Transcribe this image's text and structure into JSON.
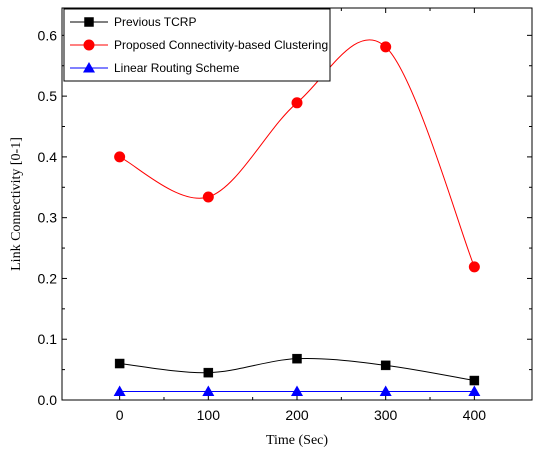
{
  "chart_data": {
    "type": "line",
    "xlabel": "Time (Sec)",
    "ylabel": "Link Connectivity [0-1]",
    "xlim": [
      -65,
      465
    ],
    "ylim": [
      0,
      0.645
    ],
    "x_ticks": [
      0,
      100,
      200,
      300,
      400
    ],
    "x_tick_labels": [
      "0",
      "100",
      "200",
      "300",
      "400"
    ],
    "y_ticks": [
      0.0,
      0.1,
      0.2,
      0.3,
      0.4,
      0.5,
      0.6
    ],
    "y_tick_labels": [
      "0.0",
      "0.1",
      "0.2",
      "0.3",
      "0.4",
      "0.5",
      "0.6"
    ],
    "grid": false,
    "legend_position": "top-left",
    "x": [
      0,
      100,
      200,
      300,
      400
    ],
    "series": [
      {
        "name": "Previous TCRP",
        "values": [
          0.06,
          0.045,
          0.068,
          0.057,
          0.032
        ],
        "color": "#000000",
        "marker": "square"
      },
      {
        "name": "Proposed Connectivity-based Clustering",
        "values": [
          0.4,
          0.334,
          0.489,
          0.581,
          0.219
        ],
        "color": "#ff0000",
        "marker": "circle"
      },
      {
        "name": "Linear Routing Scheme",
        "values": [
          0.014,
          0.014,
          0.014,
          0.014,
          0.014
        ],
        "color": "#0000ff",
        "marker": "triangle"
      }
    ]
  }
}
